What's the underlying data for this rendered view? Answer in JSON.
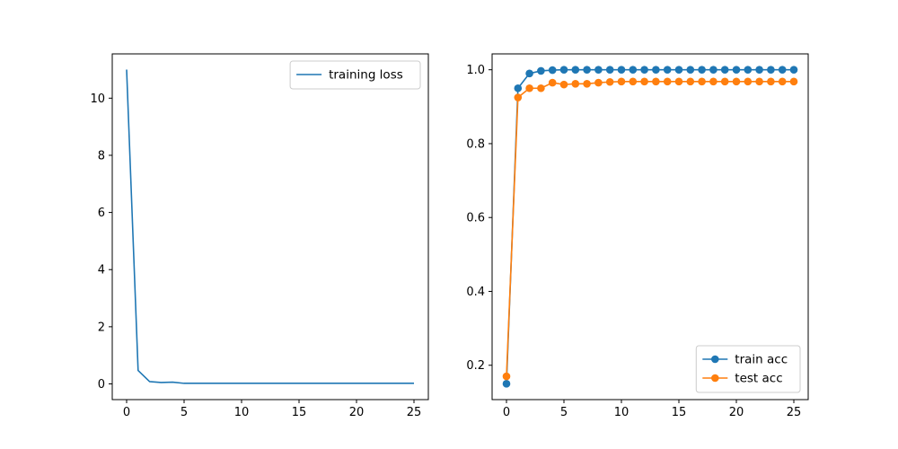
{
  "chart_data": [
    {
      "type": "line",
      "title": "",
      "xlabel": "",
      "ylabel": "",
      "xlim": [
        -1.25,
        26.25
      ],
      "ylim": [
        -0.55,
        11.55
      ],
      "xticks": [
        0,
        5,
        10,
        15,
        20,
        25
      ],
      "yticks": [
        0,
        2,
        4,
        6,
        8,
        10
      ],
      "grid": false,
      "legend_position": "upper right",
      "series": [
        {
          "name": "training loss",
          "color": "#1f77b4",
          "marker": "none",
          "x": [
            0,
            1,
            2,
            3,
            4,
            5,
            6,
            7,
            8,
            9,
            10,
            11,
            12,
            13,
            14,
            15,
            16,
            17,
            18,
            19,
            20,
            21,
            22,
            23,
            24,
            25
          ],
          "values": [
            11.0,
            0.47,
            0.08,
            0.05,
            0.06,
            0.02,
            0.02,
            0.02,
            0.02,
            0.02,
            0.02,
            0.02,
            0.02,
            0.02,
            0.02,
            0.02,
            0.02,
            0.02,
            0.02,
            0.02,
            0.02,
            0.02,
            0.02,
            0.02,
            0.02,
            0.02
          ]
        }
      ]
    },
    {
      "type": "line",
      "title": "",
      "xlabel": "",
      "ylabel": "",
      "xlim": [
        -1.25,
        26.25
      ],
      "ylim": [
        0.107,
        1.043
      ],
      "xticks": [
        0,
        5,
        10,
        15,
        20,
        25
      ],
      "yticks": [
        0.2,
        0.4,
        0.6,
        0.8,
        1.0
      ],
      "grid": false,
      "legend_position": "lower right",
      "series": [
        {
          "name": "train acc",
          "color": "#1f77b4",
          "marker": "circle",
          "x": [
            0,
            1,
            2,
            3,
            4,
            5,
            6,
            7,
            8,
            9,
            10,
            11,
            12,
            13,
            14,
            15,
            16,
            17,
            18,
            19,
            20,
            21,
            22,
            23,
            24,
            25
          ],
          "values": [
            0.15,
            0.95,
            0.99,
            0.997,
            0.999,
            1.0,
            1.0,
            1.0,
            1.0,
            1.0,
            1.0,
            1.0,
            1.0,
            1.0,
            1.0,
            1.0,
            1.0,
            1.0,
            1.0,
            1.0,
            1.0,
            1.0,
            1.0,
            1.0,
            1.0,
            1.0
          ]
        },
        {
          "name": "test acc",
          "color": "#ff7f0e",
          "marker": "circle",
          "x": [
            0,
            1,
            2,
            3,
            4,
            5,
            6,
            7,
            8,
            9,
            10,
            11,
            12,
            13,
            14,
            15,
            16,
            17,
            18,
            19,
            20,
            21,
            22,
            23,
            24,
            25
          ],
          "values": [
            0.17,
            0.925,
            0.95,
            0.95,
            0.965,
            0.96,
            0.962,
            0.962,
            0.965,
            0.967,
            0.968,
            0.968,
            0.968,
            0.968,
            0.968,
            0.968,
            0.968,
            0.968,
            0.968,
            0.968,
            0.968,
            0.968,
            0.968,
            0.968,
            0.968,
            0.968
          ]
        }
      ]
    }
  ]
}
